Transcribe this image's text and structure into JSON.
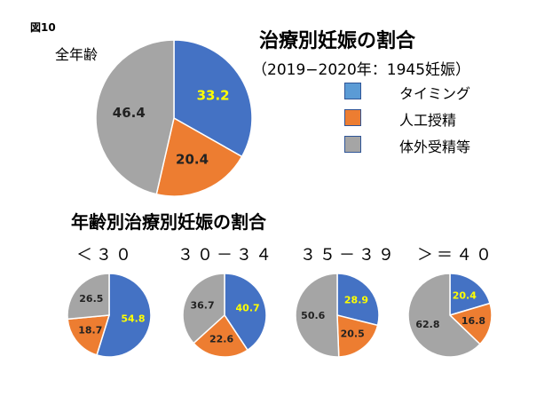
{
  "figure_label": "図10",
  "title": "治療別妊娠の割合",
  "subtitle": "（2019−2020年：1945妊娠）",
  "colors": {
    "timing": "#4472c4",
    "artificial": "#ed7d31",
    "ivf": "#a5a5a5",
    "label_light": "#ffff00",
    "label_dark": "#222222"
  },
  "legend": [
    {
      "name": "タイミング",
      "color": "#5b9bd5"
    },
    {
      "name": "人工授精",
      "color": "#ed7d31"
    },
    {
      "name": "体外受精等",
      "color": "#a5a5a5"
    }
  ],
  "overall": {
    "label": "全年齢"
  },
  "by_age_title": "年齢別治療別妊娠の割合",
  "chart_data": [
    {
      "type": "pie",
      "title": "全年齢",
      "categories": [
        "タイミング",
        "人工授精",
        "体外受精等"
      ],
      "values": [
        33.2,
        20.4,
        46.4
      ],
      "labels": [
        "33.2",
        "20.4",
        "46.4"
      ]
    },
    {
      "type": "pie",
      "title": "＜３０",
      "categories": [
        "タイミング",
        "人工授精",
        "体外受精等"
      ],
      "values": [
        54.8,
        18.7,
        26.5
      ],
      "labels": [
        "54.8",
        "18.7",
        "26.5"
      ]
    },
    {
      "type": "pie",
      "title": "３０－３４",
      "categories": [
        "タイミング",
        "人工授精",
        "体外受精等"
      ],
      "values": [
        40.7,
        22.6,
        36.7
      ],
      "labels": [
        "40.7",
        "22.6",
        "36.7"
      ]
    },
    {
      "type": "pie",
      "title": "３５－３９",
      "categories": [
        "タイミング",
        "人工授精",
        "体外受精等"
      ],
      "values": [
        28.9,
        20.5,
        50.6
      ],
      "labels": [
        "28.9",
        "20.5",
        "50.6"
      ]
    },
    {
      "type": "pie",
      "title": "＞＝４０",
      "categories": [
        "タイミング",
        "人工授精",
        "体外受精等"
      ],
      "values": [
        20.4,
        16.8,
        62.8
      ],
      "labels": [
        "20.4",
        "16.8",
        "62.8"
      ]
    }
  ]
}
